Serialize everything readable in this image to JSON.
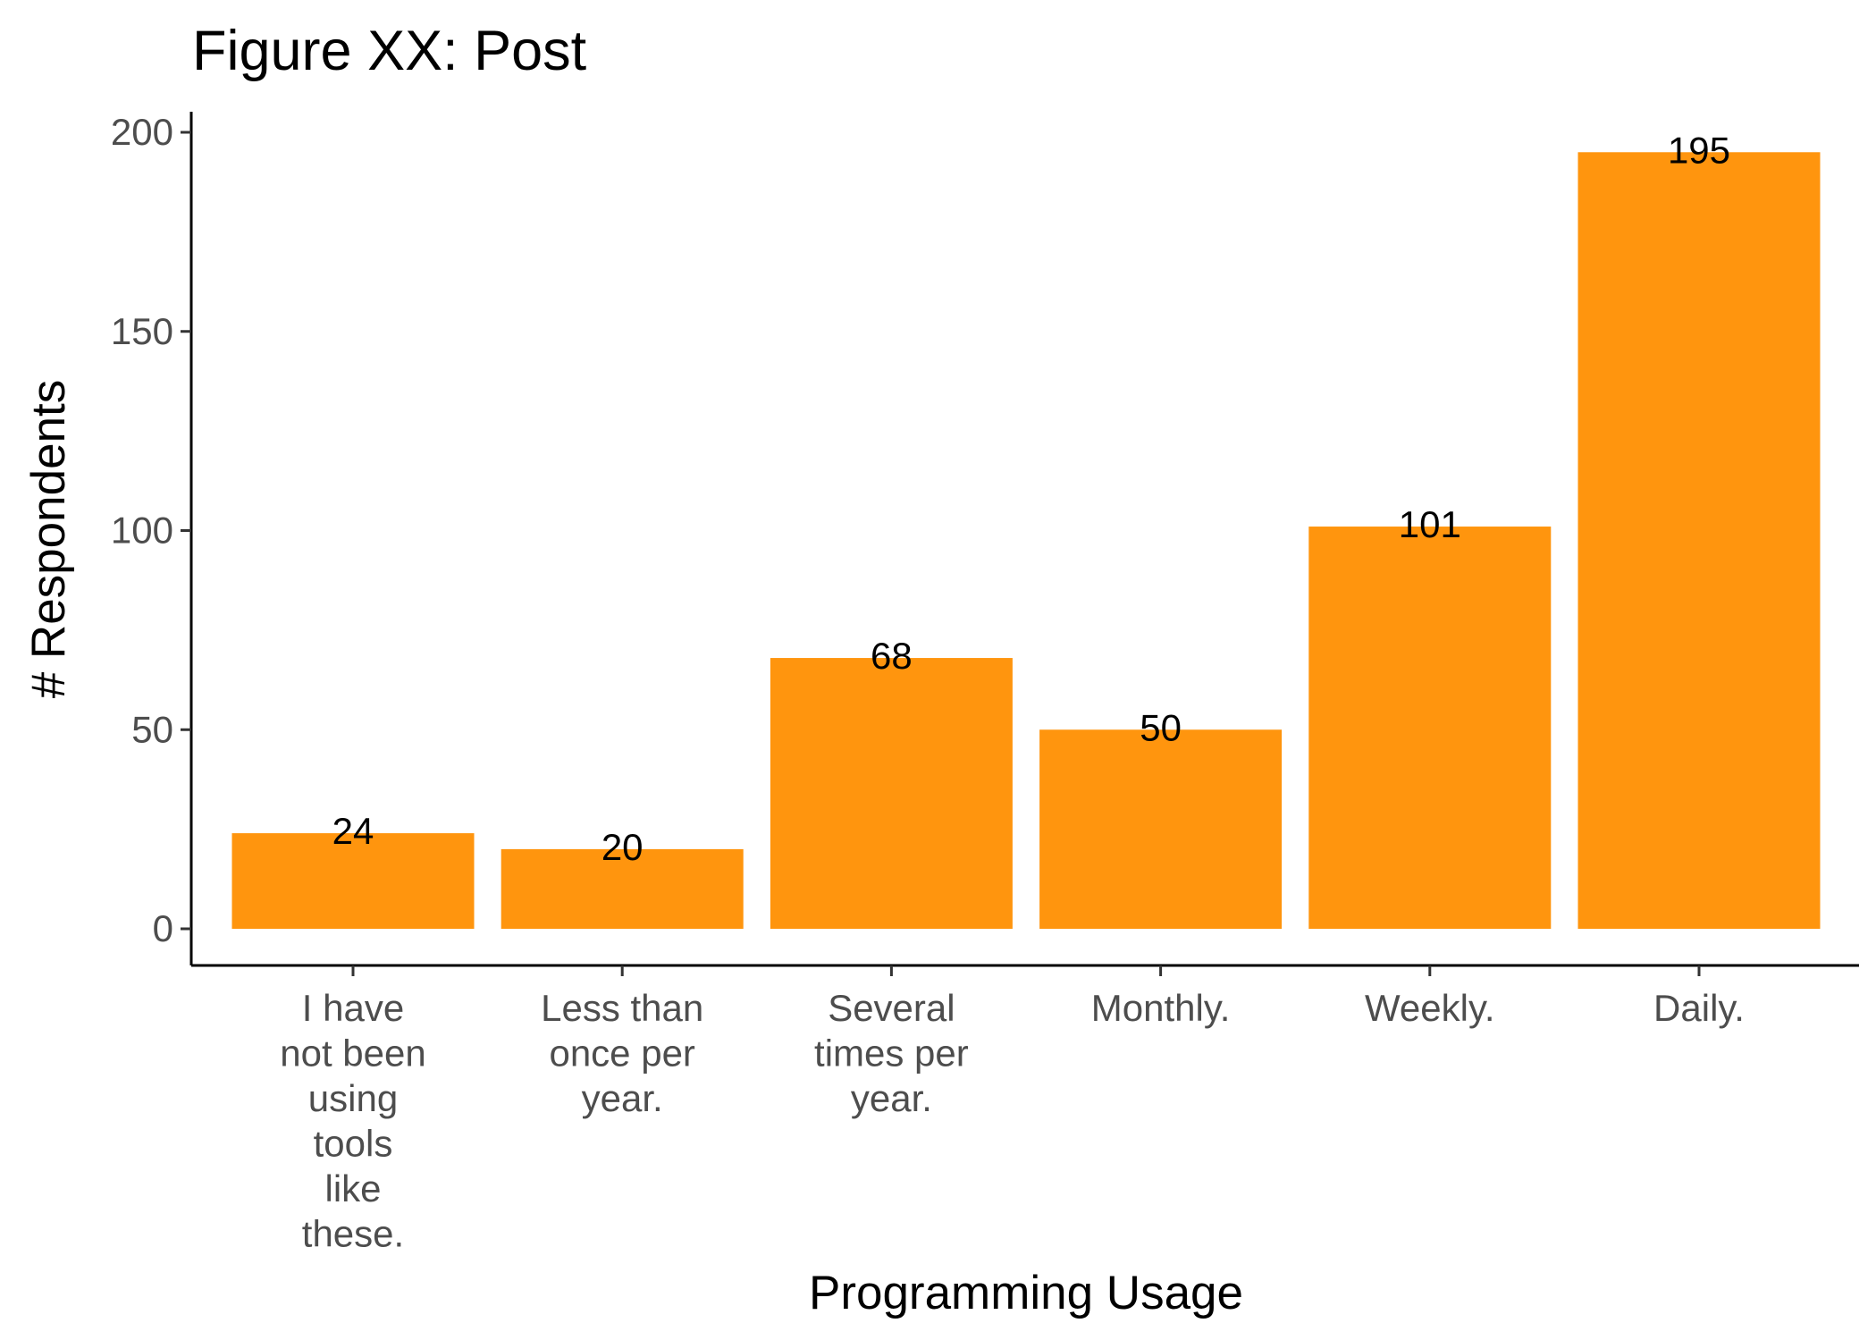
{
  "chart_data": {
    "type": "bar",
    "title": "Figure XX: Post",
    "xlabel": "Programming Usage",
    "ylabel": "# Respondents",
    "categories": [
      "I have not been using tools like these.",
      "Less than once per year.",
      "Several times per year.",
      "Monthly.",
      "Weekly.",
      "Daily."
    ],
    "category_label_lines": [
      [
        "I have",
        "not been",
        "using",
        "tools",
        "like",
        "these."
      ],
      [
        "Less than",
        "once per",
        "year."
      ],
      [
        "Several",
        "times per",
        "year."
      ],
      [
        "Monthly."
      ],
      [
        "Weekly."
      ],
      [
        "Daily."
      ]
    ],
    "values": [
      24,
      20,
      68,
      50,
      101,
      195
    ],
    "data_labels": [
      "24",
      "20",
      "68",
      "50",
      "101",
      "195"
    ],
    "ylim": [
      0,
      200
    ],
    "yticks": [
      0,
      50,
      100,
      150,
      200
    ],
    "grid": false,
    "legend": "none",
    "bar_color": "#FF950E"
  }
}
